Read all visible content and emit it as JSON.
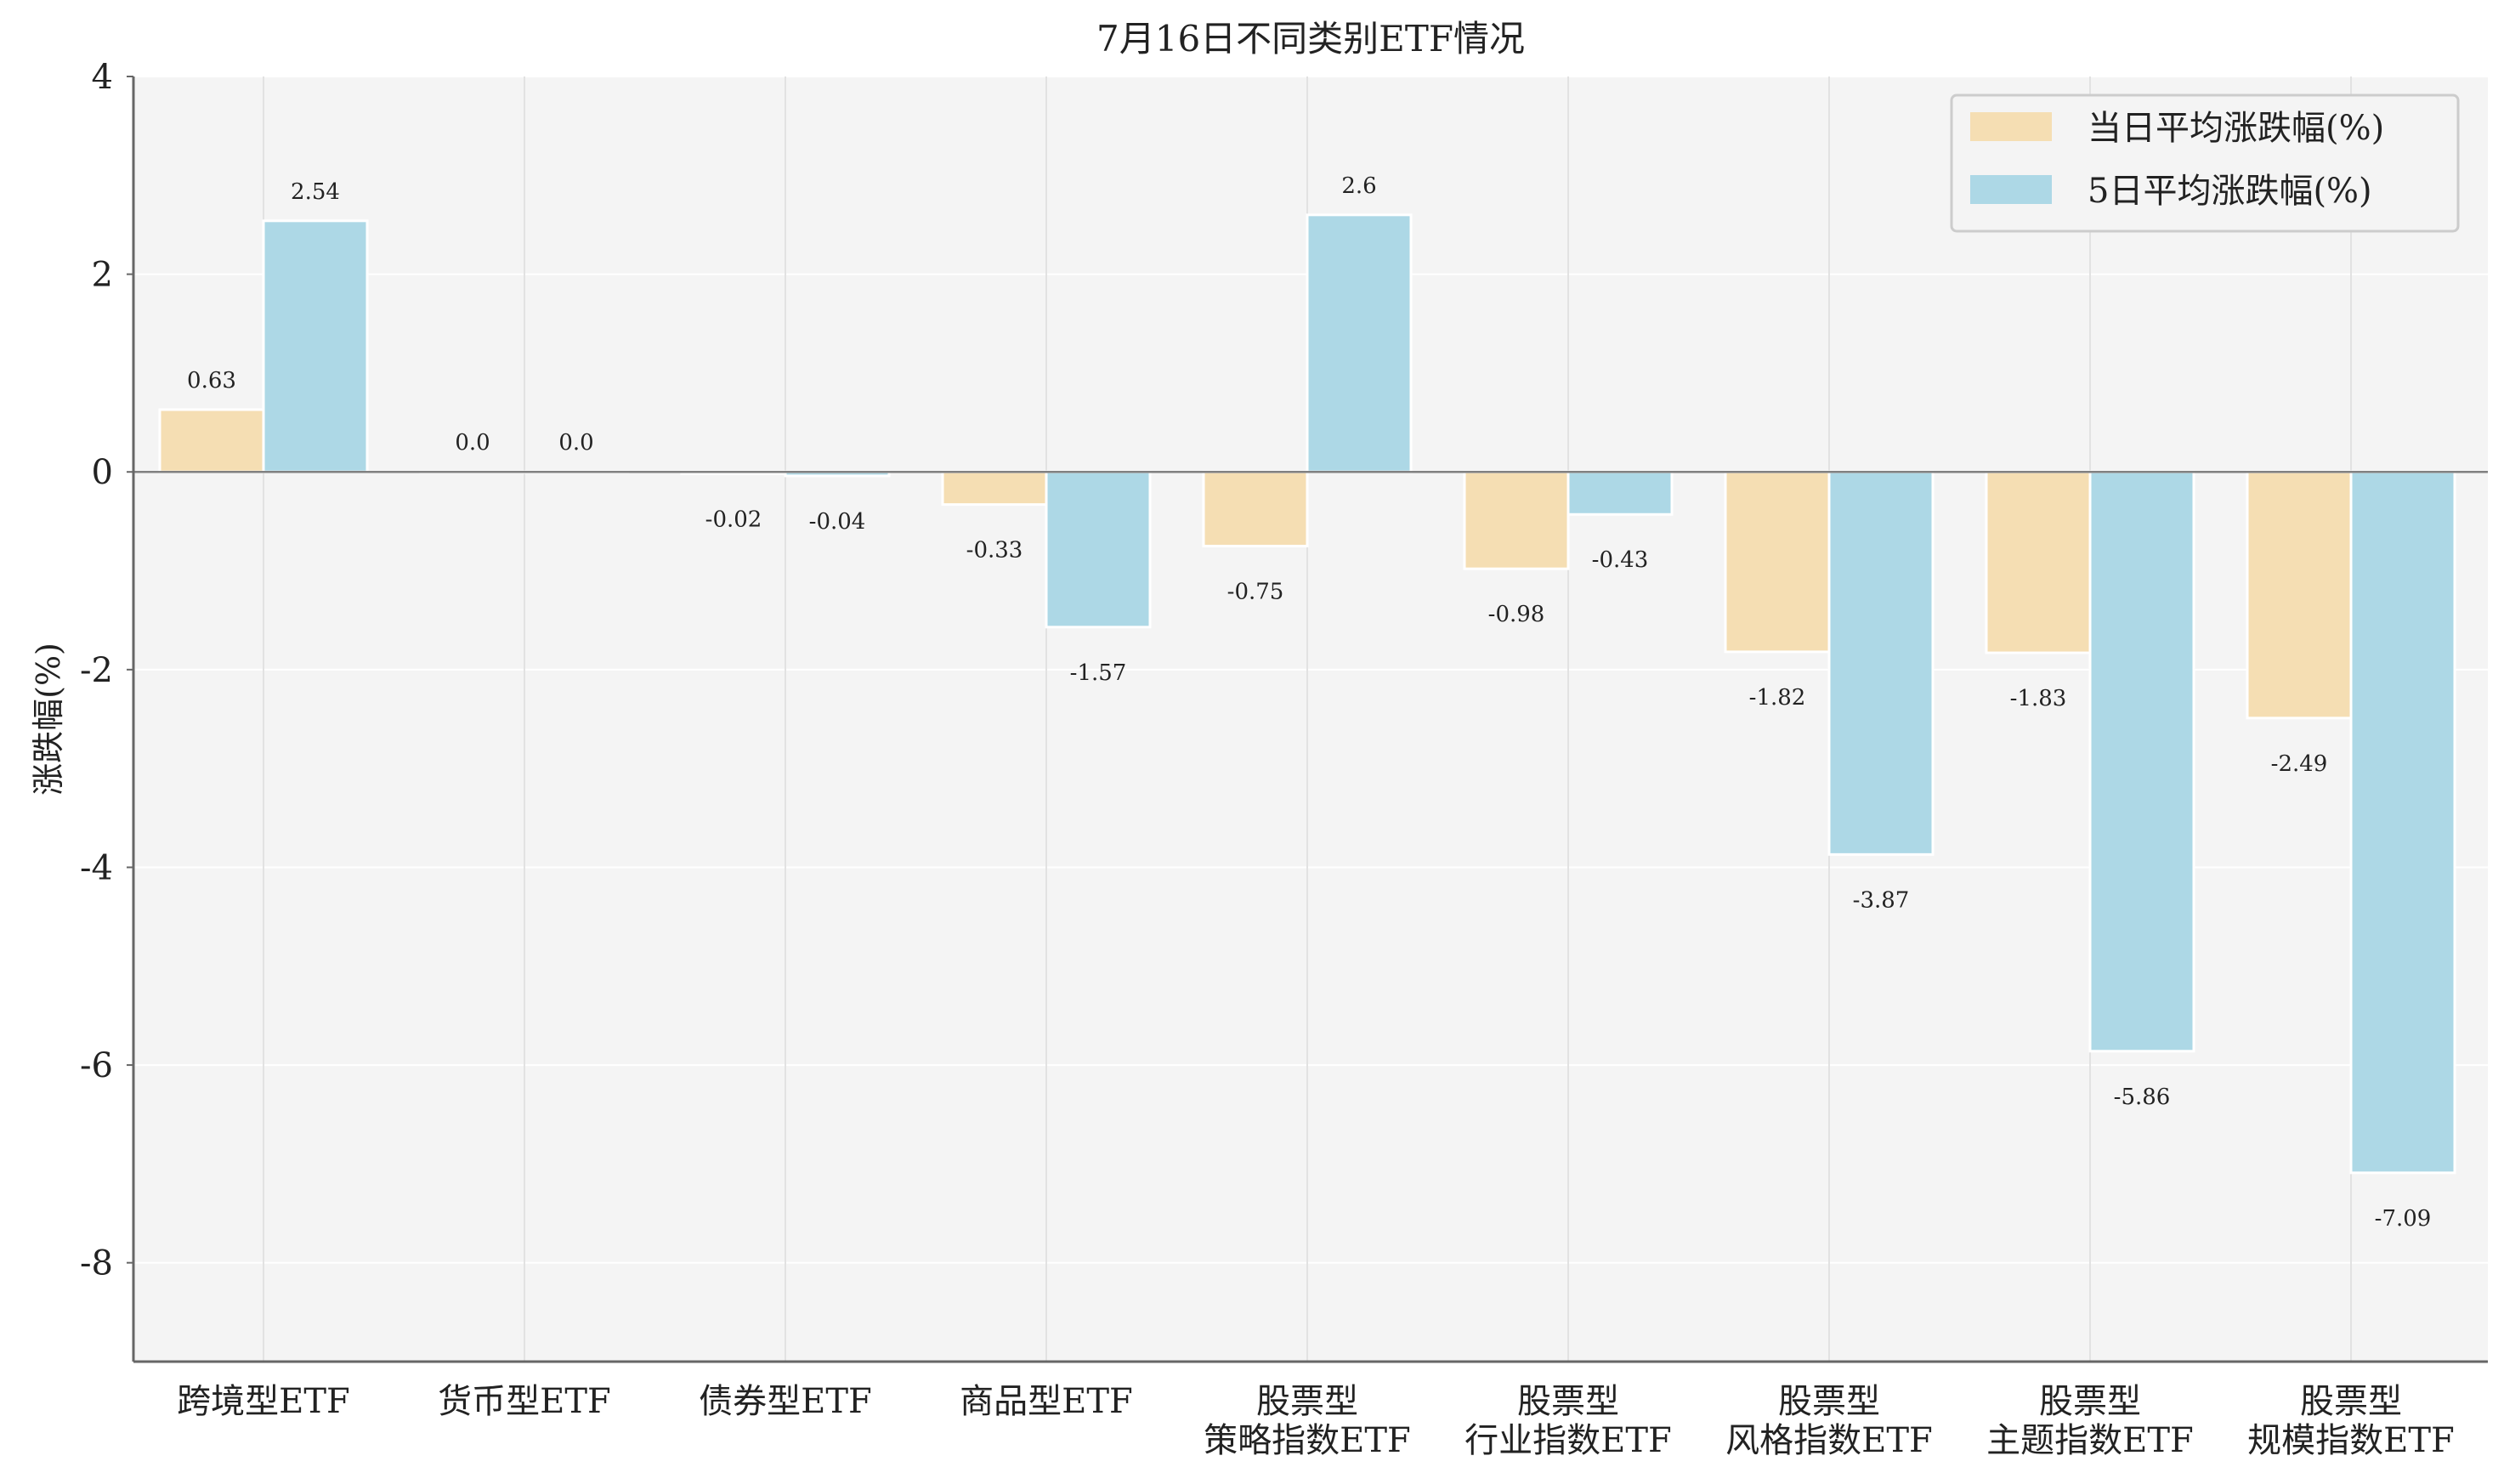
{
  "chart_data": {
    "type": "bar",
    "title": "7月16日不同类别ETF情况",
    "xlabel": "",
    "ylabel": "涨跌幅(%)",
    "ylim": [
      -9,
      4
    ],
    "yticks": [
      4,
      2,
      0,
      -2,
      -4,
      -6,
      -8
    ],
    "ytick_labels": [
      "4",
      "2",
      "0",
      "-2",
      "-4",
      "-6",
      "-8"
    ],
    "grid": true,
    "legend_position": "top-right",
    "categories": [
      [
        "跨境型ETF"
      ],
      [
        "货币型ETF"
      ],
      [
        "债券型ETF"
      ],
      [
        "商品型ETF"
      ],
      [
        "股票型",
        "策略指数ETF"
      ],
      [
        "股票型",
        "行业指数ETF"
      ],
      [
        "股票型",
        "风格指数ETF"
      ],
      [
        "股票型",
        "主题指数ETF"
      ],
      [
        "股票型",
        "规模指数ETF"
      ]
    ],
    "series": [
      {
        "name": "当日平均涨跌幅(%)",
        "color": "#f5deb3",
        "values": [
          0.63,
          0.0,
          -0.02,
          -0.33,
          -0.75,
          -0.98,
          -1.82,
          -1.83,
          -2.49
        ],
        "labels": [
          "0.63",
          "0.0",
          "-0.02",
          "-0.33",
          "-0.75",
          "-0.98",
          "-1.82",
          "-1.83",
          "-2.49"
        ]
      },
      {
        "name": "5日平均涨跌幅(%)",
        "color": "#add8e6",
        "values": [
          2.54,
          0.0,
          -0.04,
          -1.57,
          2.6,
          -0.43,
          -3.87,
          -5.86,
          -7.09
        ],
        "labels": [
          "2.54",
          "0.0",
          "-0.04",
          "-1.57",
          "2.6",
          "-0.43",
          "-3.87",
          "-5.86",
          "-7.09"
        ]
      }
    ],
    "colors": {
      "plot_background": "#f4f4f4",
      "grid": "#ffffff",
      "axis": "#666666",
      "zero_line": "#808080"
    }
  }
}
